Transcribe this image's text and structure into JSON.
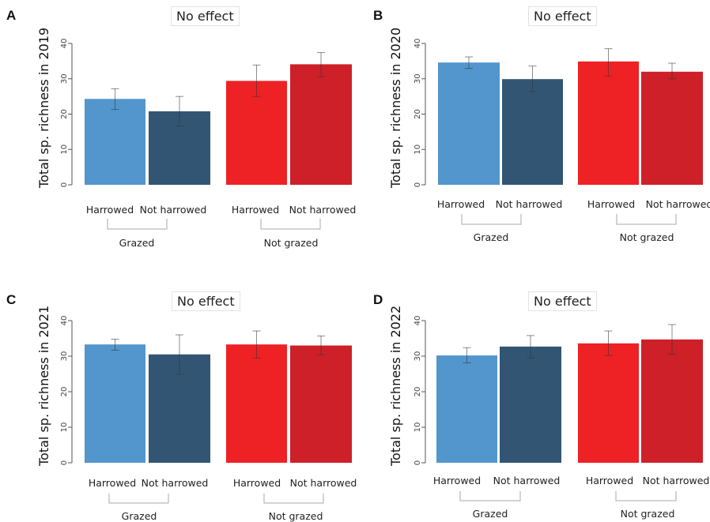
{
  "colors": {
    "grazed_harrowed": "#5296cd",
    "grazed_not_harrowed": "#335574",
    "notgrazed_harrowed": "#ee2125",
    "notgrazed_not_harrowed": "#cd2028",
    "axis": "#555555",
    "bracket": "#aaaaaa"
  },
  "chart_data": [
    {
      "panel": "A",
      "type": "bar",
      "title": "No effect",
      "ylabel": "Total sp. richness in 2019",
      "ylim": [
        0,
        40
      ],
      "yticks": [
        0,
        10,
        20,
        30,
        40
      ],
      "categories": [
        "Harrowed",
        "Not harrowed",
        "Harrowed",
        "Not harrowed"
      ],
      "groups": [
        "Grazed",
        "Not grazed"
      ],
      "values": [
        24.3,
        20.8,
        29.4,
        34.1
      ],
      "error_low": [
        21.3,
        16.6,
        25.0,
        30.6
      ],
      "error_high": [
        27.2,
        25.0,
        33.9,
        37.4
      ]
    },
    {
      "panel": "B",
      "type": "bar",
      "title": "No effect",
      "ylabel": "Total sp. richness in 2020",
      "ylim": [
        0,
        40
      ],
      "yticks": [
        0,
        10,
        20,
        30,
        40
      ],
      "categories": [
        "Harrowed",
        "Not harrowed",
        "Harrowed",
        "Not harrowed"
      ],
      "groups": [
        "Grazed",
        "Not grazed"
      ],
      "values": [
        34.6,
        29.9,
        34.9,
        32.0
      ],
      "error_low": [
        32.9,
        26.4,
        30.8,
        30.0
      ],
      "error_high": [
        36.2,
        33.6,
        38.5,
        34.4
      ]
    },
    {
      "panel": "C",
      "type": "bar",
      "title": "No effect",
      "ylabel": "Total sp. richness in 2021",
      "ylim": [
        0,
        40
      ],
      "yticks": [
        0,
        10,
        20,
        30,
        40
      ],
      "categories": [
        "Harrowed",
        "Not harrowed",
        "Harrowed",
        "Not harrowed"
      ],
      "groups": [
        "Grazed",
        "Not grazed"
      ],
      "values": [
        33.3,
        30.5,
        33.3,
        33.0
      ],
      "error_low": [
        31.7,
        24.9,
        29.5,
        30.4
      ],
      "error_high": [
        34.8,
        36.0,
        37.1,
        35.7
      ]
    },
    {
      "panel": "D",
      "type": "bar",
      "title": "No effect",
      "ylabel": "Total sp. richness in 2022",
      "ylim": [
        0,
        40
      ],
      "yticks": [
        0,
        10,
        20,
        30,
        40
      ],
      "categories": [
        "Harrowed",
        "Not harrowed",
        "Harrowed",
        "Not harrowed"
      ],
      "groups": [
        "Grazed",
        "Not grazed"
      ],
      "values": [
        30.2,
        32.7,
        33.6,
        34.7
      ],
      "error_low": [
        28.1,
        29.5,
        30.2,
        30.6
      ],
      "error_high": [
        32.4,
        35.8,
        37.1,
        38.9
      ]
    }
  ]
}
